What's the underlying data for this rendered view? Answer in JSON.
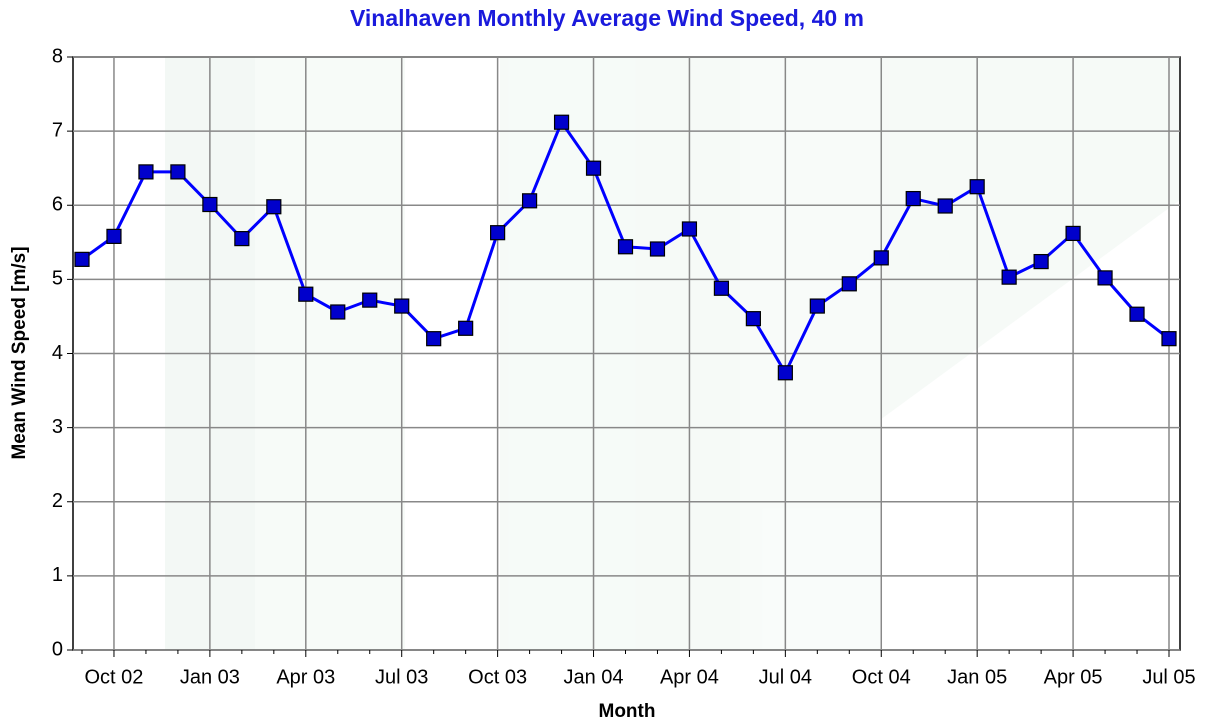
{
  "chart_data": {
    "type": "line",
    "title": "Vinalhaven Monthly Average Wind Speed, 40 m",
    "x_label": "Month",
    "y_label": "Mean Wind Speed [m/s]",
    "categories": [
      null,
      "Oct 02",
      null,
      null,
      "Jan 03",
      null,
      null,
      "Apr 03",
      null,
      null,
      "Jul 03",
      null,
      null,
      "Oct 03",
      null,
      null,
      "Jan 04",
      null,
      null,
      "Apr 04",
      null,
      null,
      "Jul 04",
      null,
      null,
      "Oct 04",
      null,
      null,
      "Jan 05",
      null,
      null,
      "Apr 05",
      null,
      null,
      "Jul 05"
    ],
    "series": [
      {
        "color": "#0000ff",
        "values": [
          5.27,
          5.58,
          6.45,
          6.45,
          6.01,
          5.55,
          5.98,
          4.8,
          4.56,
          4.72,
          4.64,
          4.2,
          4.34,
          5.63,
          6.06,
          7.12,
          6.5,
          5.44,
          5.41,
          5.68,
          4.88,
          4.47,
          3.74,
          4.64,
          4.94,
          5.29,
          6.09,
          5.99,
          6.25,
          5.03,
          5.24,
          5.62,
          5.02,
          4.53,
          4.2
        ]
      }
    ],
    "ylim": [
      0,
      8
    ],
    "yticks": [
      0,
      1,
      2,
      3,
      4,
      5,
      6,
      7,
      8
    ],
    "grid": true
  }
}
